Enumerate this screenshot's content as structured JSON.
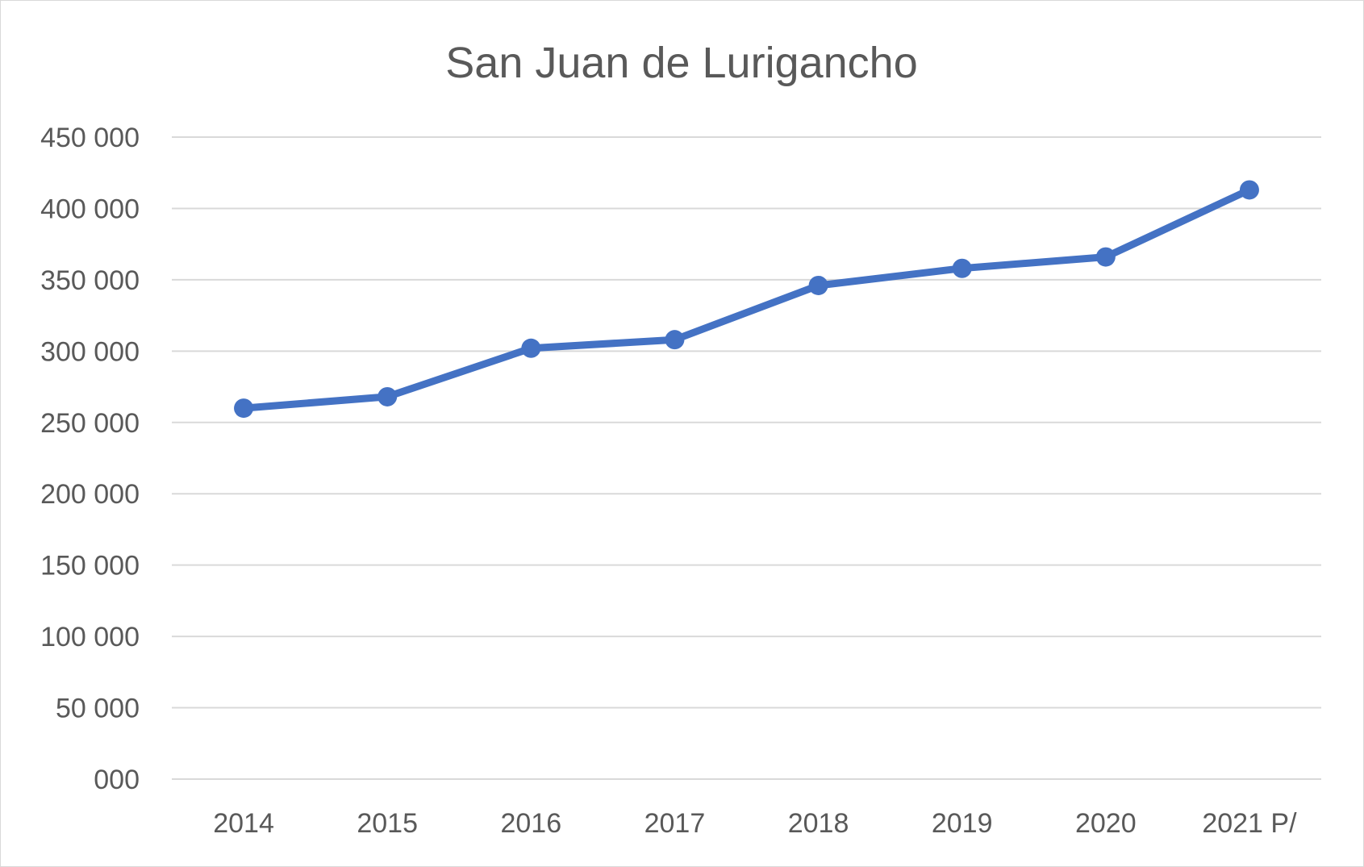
{
  "chart_data": {
    "type": "line",
    "title": "San Juan de Lurigancho",
    "xlabel": "",
    "ylabel": "",
    "categories": [
      "2014",
      "2015",
      "2016",
      "2017",
      "2018",
      "2019",
      "2020",
      "2021 P/"
    ],
    "series": [
      {
        "values": [
          260000,
          268000,
          302000,
          308000,
          346000,
          358000,
          366000,
          413000
        ],
        "color": "#4472c4",
        "marker": "circle"
      }
    ],
    "ylim": [
      0,
      450000
    ],
    "y_ticks": [
      0,
      50000,
      100000,
      150000,
      200000,
      250000,
      300000,
      350000,
      400000,
      450000
    ],
    "y_tick_labels": [
      "000",
      "50 000",
      "100 000",
      "150 000",
      "200 000",
      "250 000",
      "300 000",
      "350 000",
      "400 000",
      "450 000"
    ],
    "grid": true,
    "legend": "none"
  }
}
